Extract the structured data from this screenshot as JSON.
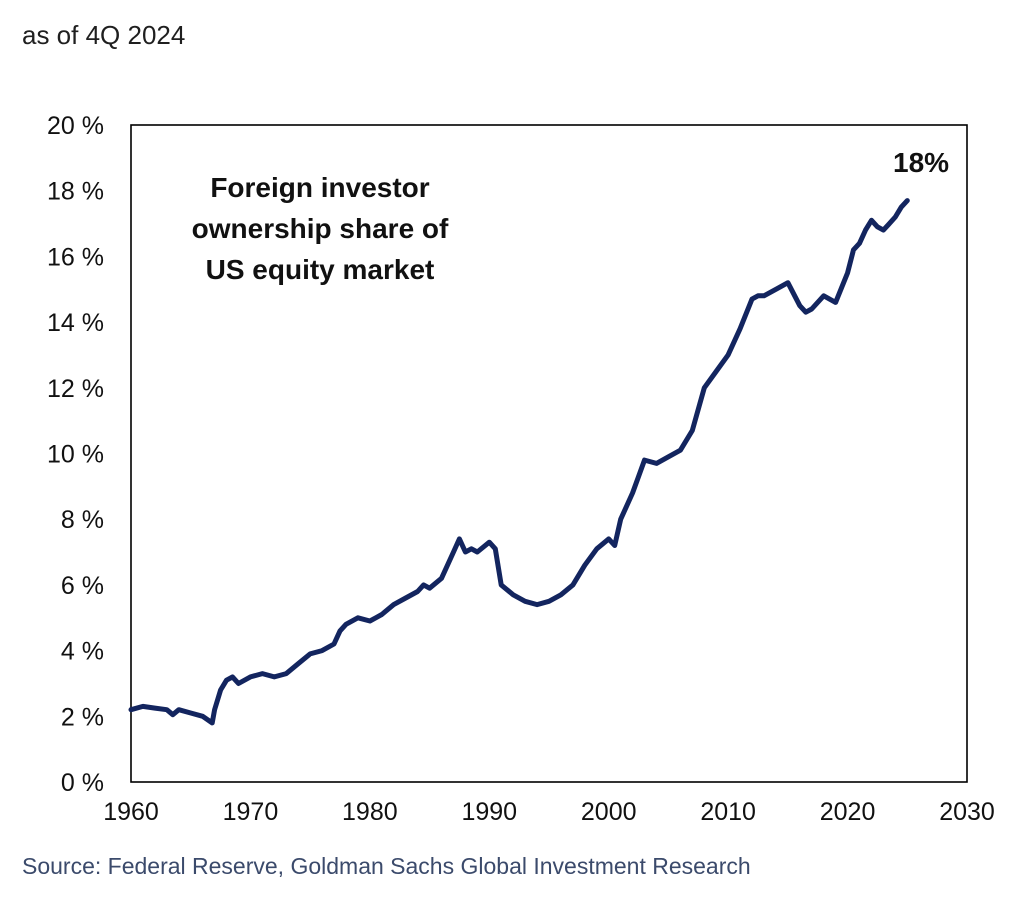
{
  "subtitle": "as of 4Q 2024",
  "source": "Source: Federal Reserve, Goldman Sachs Global Investment Research",
  "chart_data": {
    "type": "line",
    "title": "",
    "annotation": [
      "Foreign investor",
      "ownership share of",
      "US equity market"
    ],
    "end_label": "18%",
    "xlabel": "",
    "ylabel": "",
    "xlim": [
      1960,
      2030
    ],
    "ylim": [
      0,
      20
    ],
    "x_ticks": [
      "1960",
      "1970",
      "1980",
      "1990",
      "2000",
      "2010",
      "2020",
      "2030"
    ],
    "y_ticks": [
      "0 %",
      "2 %",
      "4 %",
      "6 %",
      "8 %",
      "10 %",
      "12 %",
      "14 %",
      "16 %",
      "18 %",
      "20 %"
    ],
    "grid": false,
    "line_color": "#13255f",
    "series": [
      {
        "x": [
          1960,
          1961,
          1962,
          1963,
          1963.5,
          1964,
          1965,
          1966,
          1966.8,
          1967,
          1967.5,
          1968,
          1968.5,
          1969,
          1970,
          1971,
          1972,
          1973,
          1974,
          1975,
          1976,
          1977,
          1977.5,
          1978,
          1979,
          1980,
          1980.5,
          1981,
          1982,
          1983,
          1984,
          1984.5,
          1985,
          1986,
          1987,
          1987.5,
          1988,
          1988.5,
          1989,
          1990,
          1990.5,
          1991,
          1992,
          1993,
          1994,
          1995,
          1996,
          1997,
          1998,
          1999,
          2000,
          2000.5,
          2001,
          2002,
          2003,
          2004,
          2005,
          2006,
          2007,
          2008,
          2009,
          2010,
          2011,
          2012,
          2012.5,
          2013,
          2014,
          2015,
          2016,
          2016.5,
          2017,
          2018,
          2019,
          2020,
          2020.5,
          2021,
          2021.5,
          2022,
          2022.5,
          2023,
          2023.5,
          2024,
          2024.5,
          2025
        ],
        "values": [
          2.2,
          2.3,
          2.25,
          2.2,
          2.05,
          2.2,
          2.1,
          2.0,
          1.8,
          2.2,
          2.8,
          3.1,
          3.2,
          3.0,
          3.2,
          3.3,
          3.2,
          3.3,
          3.6,
          3.9,
          4.0,
          4.2,
          4.6,
          4.8,
          5.0,
          4.9,
          5.0,
          5.1,
          5.4,
          5.6,
          5.8,
          6.0,
          5.9,
          6.2,
          7.0,
          7.4,
          7.0,
          7.1,
          7.0,
          7.3,
          7.1,
          6.0,
          5.7,
          5.5,
          5.4,
          5.5,
          5.7,
          6.0,
          6.6,
          7.1,
          7.4,
          7.2,
          8.0,
          8.8,
          9.8,
          9.7,
          9.9,
          10.1,
          10.7,
          12.0,
          12.5,
          13.0,
          13.8,
          14.7,
          14.8,
          14.8,
          15.0,
          15.2,
          14.5,
          14.3,
          14.4,
          14.8,
          14.6,
          15.5,
          16.2,
          16.4,
          16.8,
          17.1,
          16.9,
          16.8,
          17.0,
          17.2,
          17.5,
          17.7
        ]
      }
    ]
  }
}
